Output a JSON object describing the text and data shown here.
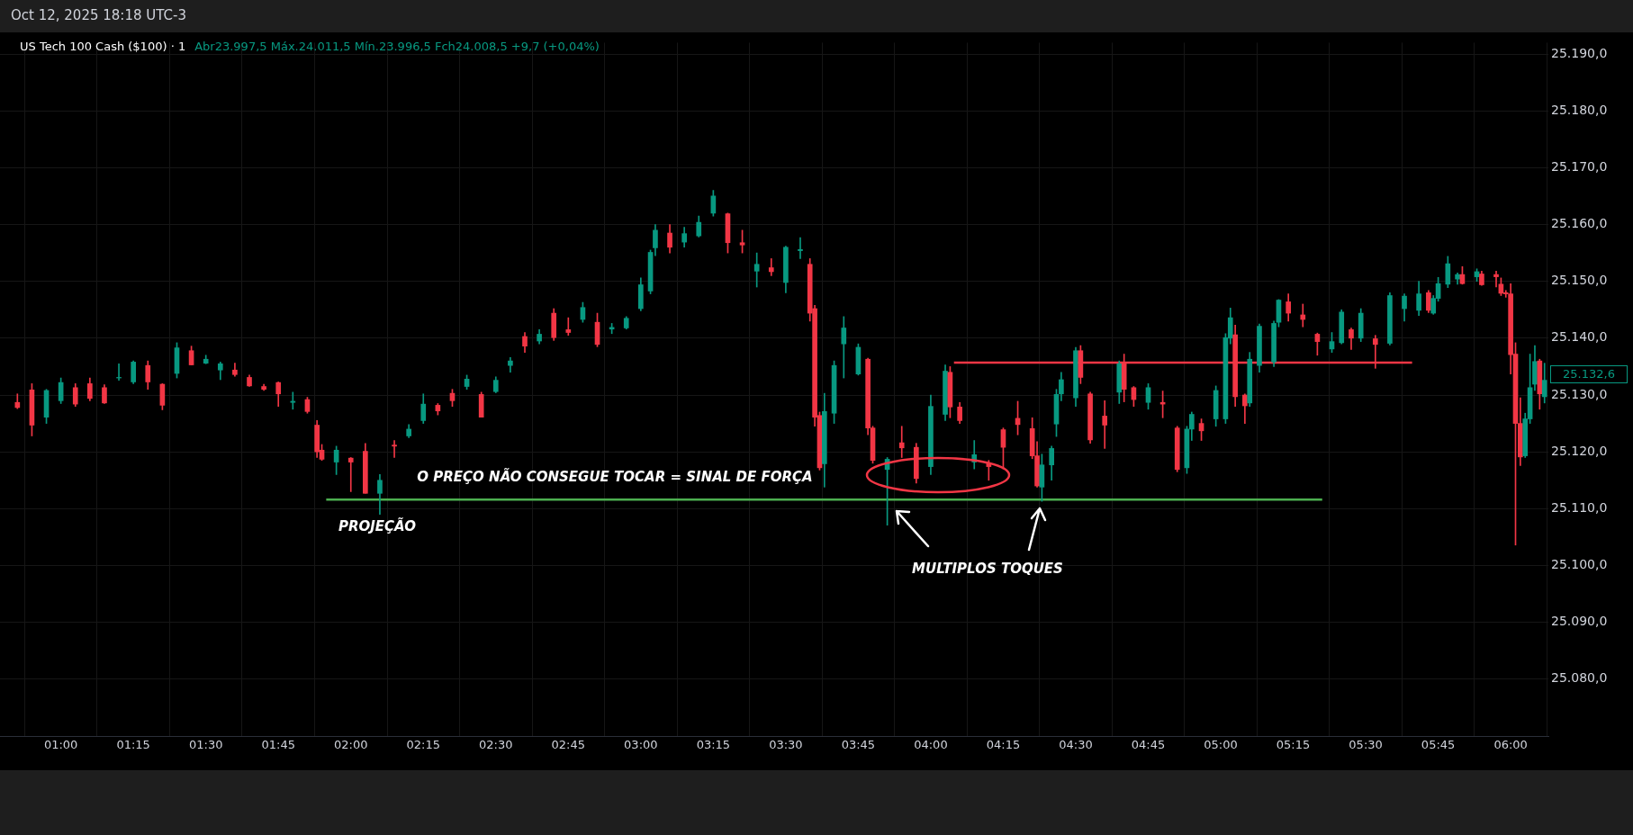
{
  "chart_data": {
    "type": "candlestick",
    "title": "US Tech 100 Cash ($100) · 1",
    "subtitle": "Abr23.997,5  Máx.24.011,5  Mín.23.996,5  Fch24.008,5  +9,7 (+0,04%)",
    "annotations": [
      "Oct 12, 2025 18:18 UTC-3",
      "O PREÇO NÃO CONSEGUE TOCAR = SINAL DE FORÇA",
      "PROJEÇÃO",
      "MULTIPLOS TOQUES",
      "25.132,6"
    ],
    "x": [
      0.85,
      0.9,
      0.95,
      1,
      1.05,
      1.1,
      1.15,
      1.2,
      1.25,
      1.3,
      1.35,
      1.4,
      1.45,
      1.5,
      1.55,
      1.6,
      1.65,
      1.7,
      1.75,
      1.8,
      1.85,
      1.8833,
      1.9,
      1.95,
      2,
      2.05,
      2.1,
      2.15,
      2.2,
      2.25,
      2.3,
      2.35,
      2.4,
      2.45,
      2.5,
      2.55,
      2.6,
      2.65,
      2.7,
      2.75,
      2.8,
      2.85,
      2.9,
      2.95,
      3,
      3.0333,
      3.05,
      3.1,
      3.15,
      3.2,
      3.25,
      3.3,
      3.35,
      3.4,
      3.45,
      3.5,
      3.55,
      3.5833,
      3.6,
      3.6167,
      3.6333,
      3.6667,
      3.7,
      3.75,
      3.7833,
      3.8,
      3.85,
      3.9,
      3.95,
      4,
      4.05,
      4.0667,
      4.1,
      4.15,
      4.2,
      4.25,
      4.3,
      4.35,
      4.3667,
      4.3833,
      4.4167,
      4.4333,
      4.45,
      4.5,
      4.5167,
      4.55,
      4.6,
      4.65,
      4.6667,
      4.7,
      4.75,
      4.8,
      4.85,
      4.8833,
      4.9,
      4.9333,
      4.9833,
      5.0167,
      5.0333,
      5.05,
      5.0833,
      5.1,
      5.1333,
      5.1833,
      5.2,
      5.2333,
      5.2833,
      5.3333,
      5.3833,
      5.4167,
      5.45,
      5.4833,
      5.5333,
      5.5833,
      5.6333,
      5.6833,
      5.7167,
      5.7333,
      5.75,
      5.7833,
      5.8167,
      5.8333,
      5.8833,
      5.9,
      5.95,
      5.9667,
      5.9833,
      6,
      6.0167,
      6.0333,
      6.05,
      6.0667,
      6.0833,
      6.1,
      6.1167
    ],
    "ohlc": [
      [
        25128.7,
        25130.2,
        25127.6,
        25127.8
      ],
      [
        25130.9,
        25132,
        25122.8,
        25124.7
      ],
      [
        25126.1,
        25131,
        25125,
        25130.8
      ],
      [
        25129,
        25133,
        25128.5,
        25132.2
      ],
      [
        25131.3,
        25132,
        25128,
        25128.4
      ],
      [
        25132,
        25133,
        25129,
        25129.4
      ],
      [
        25131.3,
        25131.8,
        25128.5,
        25128.6
      ],
      [
        25133,
        25135.5,
        25132.6,
        25133.1
      ],
      [
        25132.3,
        25136,
        25132,
        25135.8
      ],
      [
        25135.2,
        25136,
        25131,
        25132.3
      ],
      [
        25131.9,
        25132,
        25127.4,
        25128.2
      ],
      [
        25133.8,
        25139.2,
        25133,
        25138.3
      ],
      [
        25137.8,
        25138.6,
        25135.3,
        25135.3
      ],
      [
        25135.6,
        25137,
        25135.5,
        25136.3
      ],
      [
        25134.4,
        25135.8,
        25132.7,
        25135.5
      ],
      [
        25134.4,
        25135.6,
        25133.3,
        25133.6
      ],
      [
        25133.1,
        25133.5,
        25131.5,
        25131.6
      ],
      [
        25131.5,
        25131.9,
        25130.8,
        25131
      ],
      [
        25132.2,
        25132.3,
        25128,
        25130.2
      ],
      [
        25128.7,
        25130.5,
        25127.5,
        25128.9
      ],
      [
        25129.2,
        25129.6,
        25126.8,
        25127.1
      ],
      [
        25124.7,
        25125.5,
        25119,
        25120
      ],
      [
        25120.3,
        25121.3,
        25118.5,
        25118.7
      ],
      [
        25118.2,
        25121,
        25116,
        25120.3
      ],
      [
        25118.9,
        25119,
        25113,
        25118.2
      ],
      [
        25120.1,
        25121.5,
        25112.7,
        25112.7
      ],
      [
        25112.7,
        25116,
        25109,
        25115
      ],
      [
        25121.2,
        25122,
        25119,
        25121
      ],
      [
        25122.8,
        25124.8,
        25122.5,
        25124
      ],
      [
        25125.5,
        25130.2,
        25125,
        25128.4
      ],
      [
        25128.2,
        25128.5,
        25126.5,
        25127.2
      ],
      [
        25130.3,
        25131,
        25128,
        25129
      ],
      [
        25131.5,
        25133.5,
        25131,
        25132.8
      ],
      [
        25130.1,
        25130.5,
        25126.1,
        25126.1
      ],
      [
        25130.6,
        25133.2,
        25130.4,
        25132.6
      ],
      [
        25135.2,
        25136.6,
        25134,
        25136
      ],
      [
        25140.3,
        25141,
        25137.5,
        25138.6
      ],
      [
        25139.5,
        25141.5,
        25139,
        25140.7
      ],
      [
        25144.4,
        25145.2,
        25139.6,
        25140.1
      ],
      [
        25141.5,
        25143.6,
        25140.5,
        25141
      ],
      [
        25143.3,
        25146.3,
        25142.8,
        25145.4
      ],
      [
        25142.8,
        25144.4,
        25138.5,
        25138.9
      ],
      [
        25141.6,
        25142.6,
        25140.8,
        25141.9
      ],
      [
        25141.8,
        25143.8,
        25141.6,
        25143.5
      ],
      [
        25145.2,
        25150.6,
        25144.8,
        25149.4
      ],
      [
        25148.3,
        25155.5,
        25147.8,
        25155.1
      ],
      [
        25155.9,
        25160,
        25154.5,
        25159
      ],
      [
        25158.5,
        25160,
        25155,
        25156
      ],
      [
        25156.9,
        25159.5,
        25156,
        25158.4
      ],
      [
        25158,
        25161.5,
        25157.8,
        25160.4
      ],
      [
        25162,
        25166,
        25161.5,
        25165
      ],
      [
        25161.9,
        25162,
        25155,
        25156.8
      ],
      [
        25156.8,
        25159,
        25155,
        25156.4
      ],
      [
        25151.8,
        25155,
        25149,
        25153
      ],
      [
        25152.4,
        25154,
        25151,
        25151.7
      ],
      [
        25149.8,
        25156.2,
        25148,
        25156
      ],
      [
        25155.4,
        25157.7,
        25154,
        25155.6
      ],
      [
        25153,
        25154,
        25143,
        25144.4
      ],
      [
        25145.2,
        25145.8,
        25124.5,
        25126.1
      ],
      [
        25126.4,
        25127,
        25116.8,
        25117.2
      ],
      [
        25117.9,
        25130.3,
        25113.8,
        25127.1
      ],
      [
        25126.8,
        25136,
        25125,
        25135.2
      ],
      [
        25139,
        25143.8,
        25133,
        25141.8
      ],
      [
        25133.7,
        25139,
        25133.5,
        25138.4
      ],
      [
        25136.3,
        25136.5,
        25123,
        25124.2
      ],
      [
        25124.2,
        25124.5,
        25118,
        25118.5
      ],
      [
        25116.9,
        25119,
        25107.1,
        25118.7
      ],
      [
        25121.6,
        25124.5,
        25119,
        25120.7
      ],
      [
        25120.8,
        25121.5,
        25114.5,
        25115.3
      ],
      [
        25117.4,
        25130,
        25116,
        25128
      ],
      [
        25126.6,
        25135.3,
        25125.5,
        25134.2
      ],
      [
        25134,
        25135,
        25126,
        25127.9
      ],
      [
        25127.9,
        25128.7,
        25125,
        25125.5
      ],
      [
        25118.2,
        25122,
        25117,
        25119.5
      ],
      [
        25118,
        25118.5,
        25115,
        25117.4
      ],
      [
        25123.9,
        25124.2,
        25117,
        25120.8
      ],
      [
        25125.9,
        25128.9,
        25123,
        25124.8
      ],
      [
        25124.1,
        25126,
        25118.8,
        25119.3
      ],
      [
        25119.3,
        25121.8,
        25113.8,
        25114
      ],
      [
        25113.8,
        25119.6,
        25111.3,
        25117.7
      ],
      [
        25117.7,
        25121,
        25115,
        25120.6
      ],
      [
        25124.9,
        25131,
        25122.7,
        25130.1
      ],
      [
        25130.2,
        25134,
        25129,
        25132.7
      ],
      [
        25129.5,
        25138.4,
        25128,
        25137.8
      ],
      [
        25137.8,
        25138.7,
        25132,
        25133.1
      ],
      [
        25130.2,
        25130.5,
        25121.5,
        25122.1
      ],
      [
        25126.3,
        25129,
        25120.6,
        25124.7
      ],
      [
        25130.5,
        25136,
        25128.5,
        25135.5
      ],
      [
        25135.5,
        25137.2,
        25128.8,
        25131
      ],
      [
        25131.3,
        25131.5,
        25128,
        25129.2
      ],
      [
        25128.7,
        25132,
        25127.5,
        25131.3
      ],
      [
        25128.7,
        25130.7,
        25126,
        25128.4
      ],
      [
        25124.2,
        25124.5,
        25116.5,
        25116.9
      ],
      [
        25117.2,
        25124.5,
        25116.2,
        25124
      ],
      [
        25124,
        25127,
        25122,
        25126.6
      ],
      [
        25125,
        25125.8,
        25122,
        25123.7
      ],
      [
        25125.8,
        25131.6,
        25124.5,
        25130.8
      ],
      [
        25125.8,
        25140.8,
        25125,
        25140.1
      ],
      [
        25140,
        25145.3,
        25139,
        25143.6
      ],
      [
        25140.6,
        25142.3,
        25128,
        25129.7
      ],
      [
        25130,
        25130.2,
        25125,
        25128.1
      ],
      [
        25128.6,
        25137.5,
        25128,
        25136.3
      ],
      [
        25135.2,
        25142.5,
        25134,
        25142.1
      ],
      [
        25135.8,
        25143,
        25135,
        25142.6
      ],
      [
        25142.8,
        25146.8,
        25142,
        25146.7
      ],
      [
        25146.4,
        25147.8,
        25143,
        25144.4
      ],
      [
        25144.1,
        25146,
        25142,
        25143.3
      ],
      [
        25140.7,
        25140.9,
        25137,
        25139.4
      ],
      [
        25138.1,
        25141,
        25137.5,
        25139.4
      ],
      [
        25139.2,
        25145,
        25139,
        25144.6
      ],
      [
        25141.5,
        25141.8,
        25138,
        25140
      ],
      [
        25140,
        25145.2,
        25139.4,
        25144.4
      ],
      [
        25139.9,
        25140.5,
        25134.7,
        25138.9
      ],
      [
        25139.1,
        25148,
        25138.8,
        25147.5
      ],
      [
        25145.2,
        25147.8,
        25143,
        25147.4
      ],
      [
        25144.9,
        25150,
        25144,
        25147.8
      ],
      [
        25148,
        25148.4,
        25144.5,
        25144.9
      ],
      [
        25144.4,
        25147.5,
        25144.2,
        25147
      ],
      [
        25147,
        25150.7,
        25146.5,
        25149.6
      ],
      [
        25149.5,
        25154.4,
        25148.9,
        25153.1
      ],
      [
        25150.4,
        25151.5,
        25149.5,
        25151.2
      ],
      [
        25151.2,
        25152.6,
        25149.5,
        25149.6
      ],
      [
        25150.8,
        25152.2,
        25150,
        25151.7
      ],
      [
        25151.3,
        25151.8,
        25149.3,
        25149.4
      ],
      [
        25151.2,
        25151.8,
        25149,
        25150.8
      ],
      [
        25149.5,
        25150.6,
        25147.5,
        25147.9
      ],
      [
        25148,
        25148.4,
        25147.2,
        25147.8
      ],
      [
        25147.8,
        25149.6,
        25133.7,
        25137.1
      ],
      [
        25137.2,
        25139.2,
        25103.6,
        25125
      ],
      [
        25125,
        25129.5,
        25117.6,
        25119.1
      ],
      [
        25119.3,
        25126.8,
        25119,
        25125.8
      ],
      [
        25125.8,
        25137.2,
        25125,
        25131.3
      ],
      [
        25131.9,
        25138.7,
        25130.8,
        25135.9
      ],
      [
        25136,
        25136.3,
        25127.5,
        25130.2
      ],
      [
        25129.7,
        25135.6,
        25128.6,
        25132.6
      ]
    ],
    "colors": [
      "#f23645",
      "#f23645",
      "#089981",
      "#089981",
      "#f23645",
      "#f23645",
      "#f23645",
      "#089981",
      "#089981",
      "#f23645",
      "#f23645",
      "#089981",
      "#f23645",
      "#089981",
      "#089981",
      "#f23645",
      "#f23645",
      "#f23645",
      "#f23645",
      "#089981",
      "#f23645",
      "#f23645",
      "#f23645",
      "#089981",
      "#f23645",
      "#f23645",
      "#089981",
      "#f23645",
      "#089981",
      "#089981",
      "#f23645",
      "#f23645",
      "#089981",
      "#f23645",
      "#089981",
      "#089981",
      "#f23645",
      "#089981",
      "#f23645",
      "#f23645",
      "#089981",
      "#f23645",
      "#089981",
      "#089981",
      "#089981",
      "#089981",
      "#089981",
      "#f23645",
      "#089981",
      "#089981",
      "#089981",
      "#f23645",
      "#f23645",
      "#089981",
      "#f23645",
      "#089981",
      "#089981",
      "#f23645",
      "#f23645",
      "#f23645",
      "#089981",
      "#089981",
      "#089981",
      "#089981",
      "#f23645",
      "#f23645",
      "#089981",
      "#f23645",
      "#f23645",
      "#089981",
      "#089981",
      "#f23645",
      "#f23645",
      "#089981",
      "#f23645",
      "#f23645",
      "#f23645",
      "#f23645",
      "#f23645",
      "#089981",
      "#089981",
      "#089981",
      "#089981",
      "#089981",
      "#f23645",
      "#f23645",
      "#f23645",
      "#089981",
      "#f23645",
      "#f23645",
      "#089981",
      "#f23645",
      "#f23645",
      "#089981",
      "#089981",
      "#f23645",
      "#089981",
      "#089981",
      "#089981",
      "#f23645",
      "#f23645",
      "#089981",
      "#089981",
      "#089981",
      "#089981",
      "#f23645",
      "#f23645",
      "#f23645",
      "#089981",
      "#089981",
      "#f23645",
      "#089981",
      "#f23645",
      "#089981",
      "#089981",
      "#089981",
      "#f23645",
      "#089981",
      "#089981",
      "#089981",
      "#089981",
      "#f23645",
      "#089981",
      "#f23645",
      "#f23645",
      "#f23645",
      "#f23645",
      "#f23645",
      "#f23645",
      "#f23645",
      "#089981",
      "#089981",
      "#089981",
      "#f23645",
      "#089981"
    ],
    "series": [
      {
        "type": "line",
        "color": "#4caf50",
        "x": [
          1.915,
          5.35
        ],
        "values": [
          25111.6,
          25111.6
        ]
      },
      {
        "type": "line",
        "color": "#f23645",
        "x": [
          4.08,
          5.66
        ],
        "values": [
          25135.7,
          25135.7
        ]
      }
    ],
    "xlim": [
      0.79,
      6.13
    ],
    "xticks": [
      {
        "value": 1,
        "label": "01:00"
      },
      {
        "value": 1.25,
        "label": "01:15"
      },
      {
        "value": 1.5,
        "label": "01:30"
      },
      {
        "value": 1.75,
        "label": "01:45"
      },
      {
        "value": 2,
        "label": "02:00"
      },
      {
        "value": 2.25,
        "label": "02:15"
      },
      {
        "value": 2.5,
        "label": "02:30"
      },
      {
        "value": 2.75,
        "label": "02:45"
      },
      {
        "value": 3,
        "label": "03:00"
      },
      {
        "value": 3.25,
        "label": "03:15"
      },
      {
        "value": 3.5,
        "label": "03:30"
      },
      {
        "value": 3.75,
        "label": "03:45"
      },
      {
        "value": 4,
        "label": "04:00"
      },
      {
        "value": 4.25,
        "label": "04:15"
      },
      {
        "value": 4.5,
        "label": "04:30"
      },
      {
        "value": 4.75,
        "label": "04:45"
      },
      {
        "value": 5,
        "label": "05:00"
      },
      {
        "value": 5.25,
        "label": "05:15"
      },
      {
        "value": 5.5,
        "label": "05:30"
      },
      {
        "value": 5.75,
        "label": "05:45"
      },
      {
        "value": 6,
        "label": "06:00"
      }
    ],
    "ylim": [
      25070,
      25192
    ],
    "yticks": [
      {
        "value": 25080,
        "label": "25.080,0"
      },
      {
        "value": 25090,
        "label": "25.090,0"
      },
      {
        "value": 25100,
        "label": "25.100,0"
      },
      {
        "value": 25110,
        "label": "25.110,0"
      },
      {
        "value": 25120,
        "label": "25.120,0"
      },
      {
        "value": 25130,
        "label": "25.130,0"
      },
      {
        "value": 25140,
        "label": "25.140,0"
      },
      {
        "value": 25150,
        "label": "25.150,0"
      },
      {
        "value": 25160,
        "label": "25.160,0"
      },
      {
        "value": 25170,
        "label": "25.170,0"
      },
      {
        "value": 25180,
        "label": "25.180,0"
      },
      {
        "value": 25190,
        "label": "25.190,0"
      }
    ],
    "grid": true
  }
}
